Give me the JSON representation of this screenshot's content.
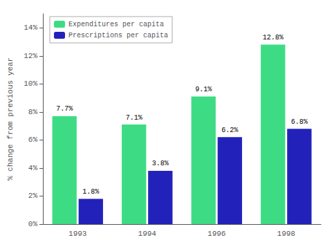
{
  "chart_data": {
    "type": "bar",
    "categories": [
      "1993",
      "1994",
      "1996",
      "1998"
    ],
    "series": [
      {
        "name": "Expenditures per capita",
        "color": "#3ddc84",
        "values": [
          7.7,
          7.1,
          9.1,
          12.8
        ],
        "value_labels": [
          "7.7%",
          "7.1%",
          "9.1%",
          "12.8%"
        ]
      },
      {
        "name": "Prescriptions per capita",
        "color": "#2222bb",
        "values": [
          1.8,
          3.8,
          6.2,
          6.8
        ],
        "value_labels": [
          "1.8%",
          "3.8%",
          "6.2%",
          "6.8%"
        ]
      }
    ],
    "ylabel": "% change from previous year",
    "ylim": [
      0,
      15.0
    ],
    "yticks": [
      {
        "value": 0,
        "label": "0%"
      },
      {
        "value": 2,
        "label": "2%"
      },
      {
        "value": 4,
        "label": "4%"
      },
      {
        "value": 6,
        "label": "6%"
      },
      {
        "value": 8,
        "label": "8%"
      },
      {
        "value": 10,
        "label": "10%"
      },
      {
        "value": 12,
        "label": "12%"
      },
      {
        "value": 14,
        "label": "14%"
      }
    ],
    "grid": false,
    "legend": "upper left",
    "data_labels": true
  }
}
